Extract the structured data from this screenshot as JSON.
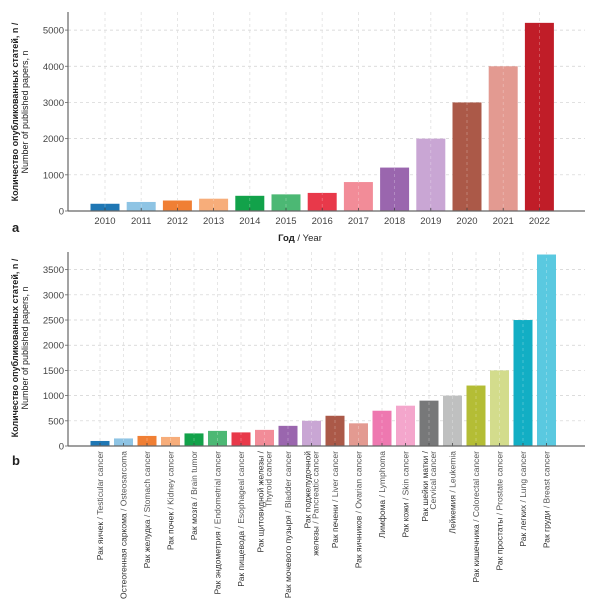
{
  "chart_data": [
    {
      "id": "a",
      "type": "bar",
      "panel_label": "a",
      "title": "",
      "ylabel_ru": "Количество опубликованных статей, n /",
      "ylabel_en": "Number of published papers, n",
      "xlabel_ru": "Год",
      "xlabel_en": " / Year",
      "ylim": [
        0,
        5500
      ],
      "yticks": [
        0,
        1000,
        2000,
        3000,
        4000,
        5000
      ],
      "grid": true,
      "categories": [
        "2010",
        "2011",
        "2012",
        "2013",
        "2014",
        "2015",
        "2016",
        "2017",
        "2018",
        "2019",
        "2020",
        "2021",
        "2022"
      ],
      "values": [
        200,
        250,
        290,
        340,
        420,
        460,
        500,
        800,
        1200,
        2000,
        3000,
        4000,
        5200
      ],
      "colors": [
        "#1f77b4",
        "#8ec4e4",
        "#f07f34",
        "#f7ad7a",
        "#12a24a",
        "#4cb874",
        "#e8394a",
        "#f28c98",
        "#9a66ae",
        "#c9a6d4",
        "#ab5948",
        "#e39a91",
        "#c01d28"
      ]
    },
    {
      "id": "b",
      "type": "bar",
      "panel_label": "b",
      "title": "",
      "ylabel_ru": "Количество опубликованных статей, n /",
      "ylabel_en": "Number of published papers, n",
      "ylim": [
        0,
        3850
      ],
      "yticks": [
        0,
        500,
        1000,
        1500,
        2000,
        2500,
        3000,
        3500
      ],
      "grid": true,
      "categories": [
        {
          "ru": [
            "Рак яичек"
          ],
          "en": [
            "/ Testicular cancer"
          ]
        },
        {
          "ru": [
            "Остеогенная саркома"
          ],
          "en": [
            "/ Osteosarcoma"
          ]
        },
        {
          "ru": [
            "Рак желудка"
          ],
          "en": [
            "/ Stomach cancer"
          ]
        },
        {
          "ru": [
            "Рак почек"
          ],
          "en": [
            "/ Kidney cancer"
          ]
        },
        {
          "ru": [
            "Рак мозга"
          ],
          "en": [
            "/ Brain tumor"
          ]
        },
        {
          "ru": [
            "Рак эндометрия"
          ],
          "en": [
            "/ Endometrial cancer"
          ]
        },
        {
          "ru": [
            "Рак пищевода"
          ],
          "en": [
            "/ Esophageal cancer"
          ]
        },
        {
          "ru": [
            "Рак щитовидной железы /"
          ],
          "en": [
            "Thyroid cancer"
          ]
        },
        {
          "ru": [
            "Рак мочевого пузыря"
          ],
          "en": [
            "/ Bladder cancer"
          ]
        },
        {
          "ru": [
            "Рак поджелудочной",
            "железы"
          ],
          "en": [
            "/ Pancreatic cancer"
          ]
        },
        {
          "ru": [
            "Рак печени"
          ],
          "en": [
            "/ Liver cancer"
          ]
        },
        {
          "ru": [
            "Рак яичников"
          ],
          "en": [
            "/ Ovarian cancer"
          ]
        },
        {
          "ru": [
            "Лимфома"
          ],
          "en": [
            "/ Lymphoma"
          ]
        },
        {
          "ru": [
            "Рак кожи"
          ],
          "en": [
            "/ Skin cancer"
          ]
        },
        {
          "ru": [
            "Рак шейки матки /"
          ],
          "en": [
            "Cervical cancer"
          ]
        },
        {
          "ru": [
            "Лейкемия"
          ],
          "en": [
            "/ Leukemia"
          ]
        },
        {
          "ru": [
            "Рак кишечника"
          ],
          "en": [
            "/ Colorectal cancer"
          ]
        },
        {
          "ru": [
            "Рак простаты"
          ],
          "en": [
            "/ Prostate cancer"
          ]
        },
        {
          "ru": [
            "Рак легких"
          ],
          "en": [
            "/ Lung cancer"
          ]
        },
        {
          "ru": [
            "Рак груди"
          ],
          "en": [
            "/ Breast cancer"
          ]
        }
      ],
      "values": [
        100,
        150,
        200,
        180,
        250,
        300,
        270,
        320,
        400,
        500,
        600,
        450,
        700,
        800,
        900,
        1000,
        1200,
        1500,
        2500,
        3800
      ],
      "colors": [
        "#1f77b4",
        "#8ec4e4",
        "#f07f34",
        "#f7ad7a",
        "#12a24a",
        "#4cb874",
        "#e8394a",
        "#f28c98",
        "#9a66ae",
        "#c9a6d4",
        "#ab5948",
        "#e39a91",
        "#ee78b0",
        "#f4a6cc",
        "#777879",
        "#bfc0c0",
        "#b4bd35",
        "#d3dc8c",
        "#12aec4",
        "#5ac9e0"
      ]
    }
  ]
}
